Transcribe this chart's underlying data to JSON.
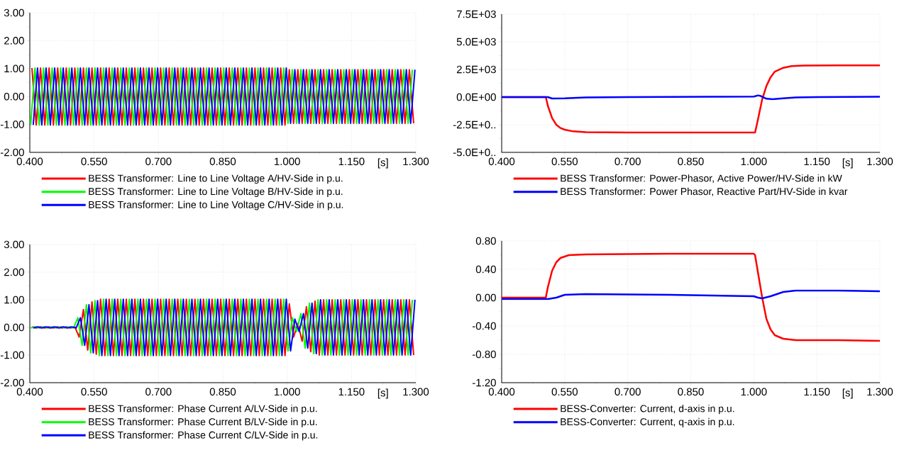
{
  "chart_data": [
    {
      "type": "line",
      "xlabel": "[s]",
      "xlim": [
        0.4,
        1.3
      ],
      "xticks": [
        {
          "value": 0.4,
          "label": "0.400"
        },
        {
          "value": 0.55,
          "label": "0.550"
        },
        {
          "value": 0.7,
          "label": "0.700"
        },
        {
          "value": 0.85,
          "label": "0.850"
        },
        {
          "value": 1.0,
          "label": "1.000"
        },
        {
          "value": 1.15,
          "label": "1.150"
        },
        {
          "value": 1.3,
          "label": "1.300"
        }
      ],
      "ylim": [
        -2,
        3
      ],
      "yticks": [
        {
          "value": -2,
          "label": "-2.00"
        },
        {
          "value": -1,
          "label": "-1.00"
        },
        {
          "value": 0,
          "label": "0.00"
        },
        {
          "value": 1,
          "label": "1.00"
        },
        {
          "value": 2,
          "label": "2.00"
        },
        {
          "value": 3,
          "label": "3.00"
        }
      ],
      "grid": true,
      "legend": "bottom",
      "series": [
        {
          "name": "BESS Transformer: Line to Line Voltage A/HV-Side in p.u.",
          "color": "#ff0000",
          "x": [
            0.405,
            0.415,
            0.425,
            0.435,
            0.445,
            0.455,
            0.465,
            0.475,
            0.485,
            0.495,
            0.505,
            0.515,
            0.525,
            0.535,
            0.545,
            0.555,
            0.565,
            0.575,
            0.585,
            0.595,
            0.605,
            0.615,
            0.625,
            0.635,
            0.645,
            0.655,
            0.665,
            0.675,
            0.685,
            0.695,
            0.705,
            0.715,
            0.725,
            0.735,
            0.745,
            0.755,
            0.765,
            0.775,
            0.785,
            0.795,
            0.805,
            0.815,
            0.825,
            0.835,
            0.845,
            0.855,
            0.865,
            0.875,
            0.885,
            0.895,
            0.905,
            0.915,
            0.925,
            0.935,
            0.945,
            0.955,
            0.965,
            0.975,
            0.985,
            0.995,
            1.005,
            1.015,
            1.025,
            1.035,
            1.045,
            1.055,
            1.065,
            1.075,
            1.085,
            1.095,
            1.105,
            1.115,
            1.125,
            1.135,
            1.145,
            1.155,
            1.165,
            1.175,
            1.185,
            1.195,
            1.205,
            1.215,
            1.225,
            1.235,
            1.245,
            1.255,
            1.265,
            1.275,
            1.285,
            1.295
          ],
          "values": [
            1.02,
            -1.02,
            1.02,
            -1.02,
            1.02,
            -1.02,
            1.02,
            -1.02,
            1.02,
            -1.02,
            1.02,
            -1.02,
            1.02,
            -1.02,
            1.02,
            -1.02,
            1.02,
            -1.02,
            1.02,
            -1.02,
            1.02,
            -1.02,
            1.02,
            -1.02,
            1.02,
            -1.02,
            1.02,
            -1.02,
            1.02,
            -1.02,
            1.02,
            -1.02,
            1.02,
            -1.02,
            1.02,
            -1.02,
            1.02,
            -1.02,
            1.02,
            -1.02,
            1.02,
            -1.02,
            1.02,
            -1.02,
            1.02,
            -1.02,
            1.02,
            -1.02,
            1.02,
            -1.02,
            1.02,
            -1.02,
            1.02,
            -1.02,
            1.02,
            -1.02,
            1.02,
            -1.02,
            1.02,
            -1.02,
            0.96,
            -0.96,
            0.96,
            -0.96,
            0.96,
            -0.96,
            0.96,
            -0.96,
            0.96,
            -0.96,
            0.96,
            -0.96,
            0.96,
            -0.96,
            0.96,
            -0.96,
            0.96,
            -0.96,
            0.96,
            -0.96,
            0.96,
            -0.96,
            0.96,
            -0.96,
            0.96,
            -0.96,
            0.96,
            -0.96,
            0.96,
            -0.96
          ]
        },
        {
          "name": "BESS Transformer: Line to Line Voltage B/HV-Side in p.u.",
          "color": "#00ff00",
          "x": [
            0.402,
            0.412,
            0.422,
            0.432,
            0.442,
            0.452,
            0.462,
            0.472,
            0.482,
            0.492,
            0.502,
            0.512,
            0.522,
            0.532,
            0.542,
            0.552,
            0.562,
            0.572,
            0.582,
            0.592,
            0.602,
            0.612,
            0.622,
            0.632,
            0.642,
            0.652,
            0.662,
            0.672,
            0.682,
            0.692,
            0.702,
            0.712,
            0.722,
            0.732,
            0.742,
            0.752,
            0.762,
            0.772,
            0.782,
            0.792,
            0.802,
            0.812,
            0.822,
            0.832,
            0.842,
            0.852,
            0.862,
            0.872,
            0.882,
            0.892,
            0.902,
            0.912,
            0.922,
            0.932,
            0.942,
            0.952,
            0.962,
            0.972,
            0.982,
            0.992,
            1.002,
            1.012,
            1.022,
            1.032,
            1.042,
            1.052,
            1.062,
            1.072,
            1.082,
            1.092,
            1.102,
            1.112,
            1.122,
            1.132,
            1.142,
            1.152,
            1.162,
            1.172,
            1.182,
            1.192,
            1.202,
            1.212,
            1.222,
            1.232,
            1.242,
            1.252,
            1.262,
            1.272,
            1.282,
            1.292
          ],
          "values": [
            -1.02,
            1.02,
            -1.02,
            1.02,
            -1.02,
            1.02,
            -1.02,
            1.02,
            -1.02,
            1.02,
            -1.02,
            1.02,
            -1.02,
            1.02,
            -1.02,
            1.02,
            -1.02,
            1.02,
            -1.02,
            1.02,
            -1.02,
            1.02,
            -1.02,
            1.02,
            -1.02,
            1.02,
            -1.02,
            1.02,
            -1.02,
            1.02,
            -1.02,
            1.02,
            -1.02,
            1.02,
            -1.02,
            1.02,
            -1.02,
            1.02,
            -1.02,
            1.02,
            -1.02,
            1.02,
            -1.02,
            1.02,
            -1.02,
            1.02,
            -1.02,
            1.02,
            -1.02,
            1.02,
            -1.02,
            1.02,
            -1.02,
            1.02,
            -1.02,
            1.02,
            -1.02,
            1.02,
            -1.02,
            1.02,
            -0.96,
            0.96,
            -0.96,
            0.96,
            -0.96,
            0.96,
            -0.96,
            0.96,
            -0.96,
            0.96,
            -0.96,
            0.96,
            -0.96,
            0.96,
            -0.96,
            0.96,
            -0.96,
            0.96,
            -0.96,
            0.96,
            -0.96,
            0.96,
            -0.96,
            0.96,
            -0.96,
            0.96,
            -0.96,
            0.96,
            -0.96,
            0.96
          ]
        },
        {
          "name": "BESS Transformer: Line to Line Voltage C/HV-Side in p.u.",
          "color": "#0000ff",
          "x": [
            0.408,
            0.418,
            0.428,
            0.438,
            0.448,
            0.458,
            0.468,
            0.478,
            0.488,
            0.498,
            0.508,
            0.518,
            0.528,
            0.538,
            0.548,
            0.558,
            0.568,
            0.578,
            0.588,
            0.598,
            0.608,
            0.618,
            0.628,
            0.638,
            0.648,
            0.658,
            0.668,
            0.678,
            0.688,
            0.698,
            0.708,
            0.718,
            0.728,
            0.738,
            0.748,
            0.758,
            0.768,
            0.778,
            0.788,
            0.798,
            0.808,
            0.818,
            0.828,
            0.838,
            0.848,
            0.858,
            0.868,
            0.878,
            0.888,
            0.898,
            0.908,
            0.918,
            0.928,
            0.938,
            0.948,
            0.958,
            0.968,
            0.978,
            0.988,
            0.998,
            1.008,
            1.018,
            1.028,
            1.038,
            1.048,
            1.058,
            1.068,
            1.078,
            1.088,
            1.098,
            1.108,
            1.118,
            1.128,
            1.138,
            1.148,
            1.158,
            1.168,
            1.178,
            1.188,
            1.198,
            1.208,
            1.218,
            1.228,
            1.238,
            1.248,
            1.258,
            1.268,
            1.278,
            1.288,
            1.298
          ],
          "values": [
            -1.02,
            1.02,
            -1.02,
            1.02,
            -1.02,
            1.02,
            -1.02,
            1.02,
            -1.02,
            1.02,
            -1.02,
            1.02,
            -1.02,
            1.02,
            -1.02,
            1.02,
            -1.02,
            1.02,
            -1.02,
            1.02,
            -1.02,
            1.02,
            -1.02,
            1.02,
            -1.02,
            1.02,
            -1.02,
            1.02,
            -1.02,
            1.02,
            -1.02,
            1.02,
            -1.02,
            1.02,
            -1.02,
            1.02,
            -1.02,
            1.02,
            -1.02,
            1.02,
            -1.02,
            1.02,
            -1.02,
            1.02,
            -1.02,
            1.02,
            -1.02,
            1.02,
            -1.02,
            1.02,
            -1.02,
            1.02,
            -1.02,
            1.02,
            -1.02,
            1.02,
            -1.02,
            1.02,
            -1.02,
            1.02,
            -0.96,
            0.96,
            -0.96,
            0.96,
            -0.96,
            0.96,
            -0.96,
            0.96,
            -0.96,
            0.96,
            -0.96,
            0.96,
            -0.96,
            0.96,
            -0.96,
            0.96,
            -0.96,
            0.96,
            -0.96,
            0.96,
            -0.96,
            0.96,
            -0.96,
            0.96,
            -0.96,
            0.96,
            -0.96,
            0.96,
            -0.96,
            0.96
          ]
        }
      ]
    },
    {
      "type": "line",
      "xlabel": "[s]",
      "xlim": [
        0.4,
        1.3
      ],
      "xticks": [
        {
          "value": 0.4,
          "label": "0.400"
        },
        {
          "value": 0.55,
          "label": "0.550"
        },
        {
          "value": 0.7,
          "label": "0.700"
        },
        {
          "value": 0.85,
          "label": "0.850"
        },
        {
          "value": 1.0,
          "label": "1.000"
        },
        {
          "value": 1.15,
          "label": "1.150"
        },
        {
          "value": 1.3,
          "label": "1.300"
        }
      ],
      "ylim": [
        -5000,
        7500
      ],
      "yticks": [
        {
          "value": -5000,
          "label": "-5.0E+0.."
        },
        {
          "value": -2500,
          "label": "-2.5E+0.."
        },
        {
          "value": 0,
          "label": "0.0E+00"
        },
        {
          "value": 2500,
          "label": "2.5E+03"
        },
        {
          "value": 5000,
          "label": "5.0E+03"
        },
        {
          "value": 7500,
          "label": "7.5E+03"
        }
      ],
      "grid": true,
      "legend": "bottom",
      "series": [
        {
          "name": "BESS Transformer: Power-Phasor, Active Power/HV-Side in kW",
          "color": "#ff0000",
          "x": [
            0.4,
            0.505,
            0.51,
            0.52,
            0.53,
            0.54,
            0.55,
            0.57,
            0.6,
            0.7,
            0.85,
            1.0,
            1.003,
            1.01,
            1.02,
            1.03,
            1.04,
            1.05,
            1.07,
            1.09,
            1.12,
            1.2,
            1.3
          ],
          "values": [
            0,
            0,
            -800,
            -1900,
            -2500,
            -2800,
            -2950,
            -3100,
            -3180,
            -3200,
            -3200,
            -3200,
            -3200,
            -2000,
            -200,
            1000,
            1800,
            2300,
            2650,
            2800,
            2850,
            2870,
            2870
          ]
        },
        {
          "name": "BESS Transformer: Power Phasor, Reactive Part/HV-Side in kvar",
          "color": "#0000ff",
          "x": [
            0.4,
            0.51,
            0.52,
            0.55,
            0.6,
            0.7,
            0.9,
            1.0,
            1.01,
            1.015,
            1.03,
            1.045,
            1.07,
            1.1,
            1.15,
            1.3
          ],
          "values": [
            0,
            0,
            -130,
            -120,
            -40,
            0,
            30,
            50,
            150,
            120,
            -150,
            -200,
            -120,
            -40,
            0,
            30
          ]
        }
      ]
    },
    {
      "type": "line",
      "xlabel": "[s]",
      "xlim": [
        0.4,
        1.3
      ],
      "xticks": [
        {
          "value": 0.4,
          "label": "0.400"
        },
        {
          "value": 0.55,
          "label": "0.550"
        },
        {
          "value": 0.7,
          "label": "0.700"
        },
        {
          "value": 0.85,
          "label": "0.850"
        },
        {
          "value": 1.0,
          "label": "1.000"
        },
        {
          "value": 1.15,
          "label": "1.150"
        },
        {
          "value": 1.3,
          "label": "1.300"
        }
      ],
      "ylim": [
        -2,
        3
      ],
      "yticks": [
        {
          "value": -2,
          "label": "-2.00"
        },
        {
          "value": -1,
          "label": "-1.00"
        },
        {
          "value": 0,
          "label": "0.00"
        },
        {
          "value": 1,
          "label": "1.00"
        },
        {
          "value": 2,
          "label": "2.00"
        },
        {
          "value": 3,
          "label": "3.00"
        }
      ],
      "grid": true,
      "legend": "bottom",
      "series": [
        {
          "name": "BESS Transformer: Phase Current A/LV-Side in p.u.",
          "color": "#ff0000",
          "x": [
            0.405,
            0.415,
            0.425,
            0.435,
            0.445,
            0.455,
            0.465,
            0.475,
            0.485,
            0.495,
            0.505,
            0.515,
            0.525,
            0.535,
            0.545,
            0.555,
            0.565,
            0.575,
            0.585,
            0.595,
            0.605,
            0.615,
            0.625,
            0.635,
            0.645,
            0.655,
            0.665,
            0.675,
            0.685,
            0.695,
            0.705,
            0.715,
            0.725,
            0.735,
            0.745,
            0.755,
            0.765,
            0.775,
            0.785,
            0.795,
            0.805,
            0.815,
            0.825,
            0.835,
            0.845,
            0.855,
            0.865,
            0.875,
            0.885,
            0.895,
            0.905,
            0.915,
            0.925,
            0.935,
            0.945,
            0.955,
            0.965,
            0.975,
            0.985,
            0.995,
            1.005,
            1.015,
            1.025,
            1.035,
            1.045,
            1.055,
            1.065,
            1.075,
            1.085,
            1.095,
            1.105,
            1.115,
            1.125,
            1.135,
            1.145,
            1.155,
            1.165,
            1.175,
            1.185,
            1.195,
            1.205,
            1.215,
            1.225,
            1.235,
            1.245,
            1.255,
            1.265,
            1.275,
            1.285,
            1.295
          ],
          "values": [
            0.02,
            -0.02,
            0.02,
            -0.02,
            0.02,
            -0.02,
            0.02,
            -0.02,
            0.02,
            -0.02,
            0.02,
            -0.35,
            0.65,
            -0.82,
            0.92,
            -0.97,
            1.02,
            -1.02,
            1.02,
            -1.02,
            1.02,
            -1.02,
            1.02,
            -1.02,
            1.02,
            -1.02,
            1.02,
            -1.02,
            1.02,
            -1.02,
            1.02,
            -1.02,
            1.02,
            -1.02,
            1.02,
            -1.02,
            1.02,
            -1.02,
            1.02,
            -1.02,
            1.02,
            -1.02,
            1.02,
            -1.02,
            1.02,
            -1.02,
            1.02,
            -1.02,
            1.02,
            -1.02,
            1.02,
            -1.02,
            1.02,
            -1.02,
            1.02,
            -1.02,
            1.02,
            -1.02,
            1.02,
            -1.02,
            0.85,
            -0.35,
            0.15,
            -0.5,
            0.75,
            -0.88,
            0.95,
            -1.0,
            1.0,
            -1.0,
            1.0,
            -1.0,
            1.0,
            -1.0,
            1.0,
            -1.0,
            1.0,
            -1.0,
            1.0,
            -1.0,
            1.0,
            -1.0,
            1.0,
            -1.0,
            1.0,
            -1.0,
            1.0,
            -1.0,
            1.0,
            -1.0
          ]
        },
        {
          "name": "BESS Transformer: Phase Current B/LV-Side in p.u.",
          "color": "#00ff00",
          "x": [
            0.402,
            0.412,
            0.422,
            0.432,
            0.442,
            0.452,
            0.462,
            0.472,
            0.482,
            0.492,
            0.502,
            0.512,
            0.522,
            0.532,
            0.542,
            0.552,
            0.562,
            0.572,
            0.582,
            0.592,
            0.602,
            0.612,
            0.622,
            0.632,
            0.642,
            0.652,
            0.662,
            0.672,
            0.682,
            0.692,
            0.702,
            0.712,
            0.722,
            0.732,
            0.742,
            0.752,
            0.762,
            0.772,
            0.782,
            0.792,
            0.802,
            0.812,
            0.822,
            0.832,
            0.842,
            0.852,
            0.862,
            0.872,
            0.882,
            0.892,
            0.902,
            0.912,
            0.922,
            0.932,
            0.942,
            0.952,
            0.962,
            0.972,
            0.982,
            0.992,
            1.002,
            1.012,
            1.022,
            1.032,
            1.042,
            1.052,
            1.062,
            1.072,
            1.082,
            1.092,
            1.102,
            1.112,
            1.122,
            1.132,
            1.142,
            1.152,
            1.162,
            1.172,
            1.182,
            1.192,
            1.202,
            1.212,
            1.222,
            1.232,
            1.242,
            1.252,
            1.262,
            1.272,
            1.282,
            1.292
          ],
          "values": [
            -0.02,
            0.02,
            -0.02,
            0.02,
            -0.02,
            0.02,
            -0.02,
            0.02,
            -0.02,
            0.02,
            -0.02,
            0.35,
            -0.65,
            0.82,
            -0.92,
            0.97,
            -1.02,
            1.02,
            -1.02,
            1.02,
            -1.02,
            1.02,
            -1.02,
            1.02,
            -1.02,
            1.02,
            -1.02,
            1.02,
            -1.02,
            1.02,
            -1.02,
            1.02,
            -1.02,
            1.02,
            -1.02,
            1.02,
            -1.02,
            1.02,
            -1.02,
            1.02,
            -1.02,
            1.02,
            -1.02,
            1.02,
            -1.02,
            1.02,
            -1.02,
            1.02,
            -1.02,
            1.02,
            -1.02,
            1.02,
            -1.02,
            1.02,
            -1.02,
            1.02,
            -1.02,
            1.02,
            -1.02,
            1.02,
            -0.85,
            0.35,
            -0.15,
            0.5,
            -0.75,
            0.88,
            -0.95,
            1.0,
            -1.0,
            1.0,
            -1.0,
            1.0,
            -1.0,
            1.0,
            -1.0,
            1.0,
            -1.0,
            1.0,
            -1.0,
            1.0,
            -1.0,
            1.0,
            -1.0,
            1.0,
            -1.0,
            1.0,
            -1.0,
            1.0,
            -1.0,
            1.0
          ]
        },
        {
          "name": "BESS Transformer: Phase Current C/LV-Side in p.u.",
          "color": "#0000ff",
          "x": [
            0.408,
            0.418,
            0.428,
            0.438,
            0.448,
            0.458,
            0.468,
            0.478,
            0.488,
            0.498,
            0.508,
            0.518,
            0.528,
            0.538,
            0.548,
            0.558,
            0.568,
            0.578,
            0.588,
            0.598,
            0.608,
            0.618,
            0.628,
            0.638,
            0.648,
            0.658,
            0.668,
            0.678,
            0.688,
            0.698,
            0.708,
            0.718,
            0.728,
            0.738,
            0.748,
            0.758,
            0.768,
            0.778,
            0.788,
            0.798,
            0.808,
            0.818,
            0.828,
            0.838,
            0.848,
            0.858,
            0.868,
            0.878,
            0.888,
            0.898,
            0.908,
            0.918,
            0.928,
            0.938,
            0.948,
            0.958,
            0.968,
            0.978,
            0.988,
            0.998,
            1.008,
            1.018,
            1.028,
            1.038,
            1.048,
            1.058,
            1.068,
            1.078,
            1.088,
            1.098,
            1.108,
            1.118,
            1.128,
            1.138,
            1.148,
            1.158,
            1.168,
            1.178,
            1.188,
            1.198,
            1.208,
            1.218,
            1.228,
            1.238,
            1.248,
            1.258,
            1.268,
            1.278,
            1.288,
            1.298
          ],
          "values": [
            -0.02,
            0.02,
            -0.02,
            0.02,
            -0.02,
            0.02,
            -0.02,
            0.02,
            -0.02,
            0.02,
            -0.02,
            0.35,
            -0.65,
            0.82,
            -0.92,
            0.97,
            -1.02,
            1.02,
            -1.02,
            1.02,
            -1.02,
            1.02,
            -1.02,
            1.02,
            -1.02,
            1.02,
            -1.02,
            1.02,
            -1.02,
            1.02,
            -1.02,
            1.02,
            -1.02,
            1.02,
            -1.02,
            1.02,
            -1.02,
            1.02,
            -1.02,
            1.02,
            -1.02,
            1.02,
            -1.02,
            1.02,
            -1.02,
            1.02,
            -1.02,
            1.02,
            -1.02,
            1.02,
            -1.02,
            1.02,
            -1.02,
            1.02,
            -1.02,
            1.02,
            -1.02,
            1.02,
            -1.02,
            1.02,
            -0.85,
            0.3,
            -0.15,
            0.5,
            -0.75,
            0.88,
            -0.95,
            1.0,
            -1.0,
            1.0,
            -1.0,
            1.0,
            -1.0,
            1.0,
            -1.0,
            1.0,
            -1.0,
            1.0,
            -1.0,
            1.0,
            -1.0,
            1.0,
            -1.0,
            1.0,
            -1.0,
            1.0,
            -1.0,
            1.0,
            -1.0,
            1.0
          ]
        }
      ]
    },
    {
      "type": "line",
      "xlabel": "[s]",
      "xlim": [
        0.4,
        1.3
      ],
      "xticks": [
        {
          "value": 0.4,
          "label": "0.400"
        },
        {
          "value": 0.55,
          "label": "0.550"
        },
        {
          "value": 0.7,
          "label": "0.700"
        },
        {
          "value": 0.85,
          "label": "0.850"
        },
        {
          "value": 1.0,
          "label": "1.000"
        },
        {
          "value": 1.15,
          "label": "1.150"
        },
        {
          "value": 1.3,
          "label": "1.300"
        }
      ],
      "ylim": [
        -1.2,
        0.8
      ],
      "yticks": [
        {
          "value": -1.2,
          "label": "-1.20"
        },
        {
          "value": -0.8,
          "label": "-0.80"
        },
        {
          "value": -0.4,
          "label": "-0.40"
        },
        {
          "value": 0,
          "label": "0.00"
        },
        {
          "value": 0.4,
          "label": "0.40"
        },
        {
          "value": 0.8,
          "label": "0.80"
        }
      ],
      "grid": true,
      "legend": "bottom",
      "series": [
        {
          "name": "BESS-Converter: Current, d-axis in p.u.",
          "color": "#ff0000",
          "x": [
            0.4,
            0.505,
            0.51,
            0.52,
            0.53,
            0.54,
            0.56,
            0.6,
            0.8,
            1.0,
            1.003,
            1.01,
            1.02,
            1.03,
            1.04,
            1.05,
            1.07,
            1.1,
            1.2,
            1.3
          ],
          "values": [
            0,
            0,
            0.15,
            0.38,
            0.5,
            0.56,
            0.6,
            0.61,
            0.62,
            0.62,
            0.6,
            0.35,
            0.0,
            -0.3,
            -0.45,
            -0.53,
            -0.58,
            -0.6,
            -0.6,
            -0.61
          ]
        },
        {
          "name": "BESS-Converter: Current, q-axis in p.u.",
          "color": "#0000ff",
          "x": [
            0.4,
            0.51,
            0.53,
            0.55,
            0.6,
            0.8,
            1.0,
            1.01,
            1.02,
            1.04,
            1.07,
            1.1,
            1.2,
            1.3
          ],
          "values": [
            -0.02,
            -0.02,
            0.0,
            0.04,
            0.05,
            0.04,
            0.02,
            0.0,
            -0.01,
            0.02,
            0.08,
            0.1,
            0.1,
            0.09
          ]
        }
      ]
    }
  ]
}
